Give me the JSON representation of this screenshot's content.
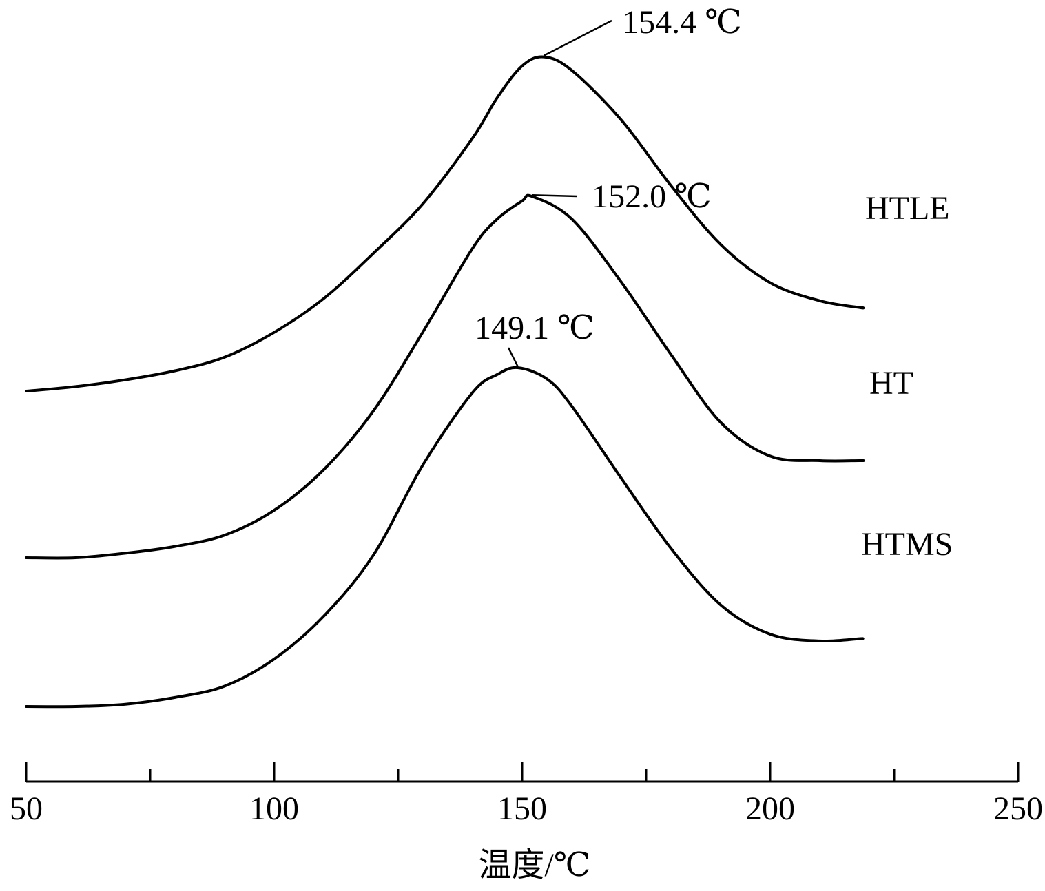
{
  "chart_data": {
    "type": "line",
    "title": "",
    "xlabel": "温度/℃",
    "ylabel": "",
    "xlim": [
      50,
      250
    ],
    "x_ticks": [
      "50",
      "100",
      "150",
      "200",
      "250"
    ],
    "x_minor_ticks": [
      75,
      125,
      175,
      225
    ],
    "grid": false,
    "legend": "none",
    "series": [
      {
        "name": "HTLE",
        "peak_label": "154.4 ℃",
        "peak_x": 154.4,
        "points": [
          [
            50,
            0.0
          ],
          [
            60,
            0.02
          ],
          [
            70,
            0.05
          ],
          [
            80,
            0.09
          ],
          [
            90,
            0.15
          ],
          [
            100,
            0.26
          ],
          [
            110,
            0.41
          ],
          [
            120,
            0.61
          ],
          [
            130,
            0.83
          ],
          [
            140,
            1.12
          ],
          [
            145,
            1.3
          ],
          [
            150,
            1.44
          ],
          [
            154.4,
            1.48
          ],
          [
            160,
            1.42
          ],
          [
            170,
            1.2
          ],
          [
            180,
            0.91
          ],
          [
            190,
            0.65
          ],
          [
            200,
            0.48
          ],
          [
            210,
            0.4
          ],
          [
            218,
            0.37
          ]
        ]
      },
      {
        "name": "HT",
        "peak_label": "152.0 ℃",
        "peak_x": 152.0,
        "points": [
          [
            50,
            0.0
          ],
          [
            60,
            0.0
          ],
          [
            70,
            0.02
          ],
          [
            80,
            0.05
          ],
          [
            90,
            0.1
          ],
          [
            100,
            0.21
          ],
          [
            110,
            0.39
          ],
          [
            120,
            0.65
          ],
          [
            130,
            1.0
          ],
          [
            140,
            1.37
          ],
          [
            145,
            1.5
          ],
          [
            150,
            1.58
          ],
          [
            152.0,
            1.6
          ],
          [
            160,
            1.5
          ],
          [
            170,
            1.22
          ],
          [
            180,
            0.9
          ],
          [
            190,
            0.6
          ],
          [
            200,
            0.45
          ],
          [
            210,
            0.43
          ],
          [
            218,
            0.43
          ]
        ]
      },
      {
        "name": "HTMS",
        "peak_label": "149.1 ℃",
        "peak_x": 149.1,
        "points": [
          [
            50,
            0.0
          ],
          [
            60,
            0.0
          ],
          [
            70,
            0.01
          ],
          [
            80,
            0.04
          ],
          [
            90,
            0.09
          ],
          [
            100,
            0.21
          ],
          [
            110,
            0.4
          ],
          [
            120,
            0.67
          ],
          [
            130,
            1.07
          ],
          [
            140,
            1.39
          ],
          [
            145,
            1.47
          ],
          [
            149.1,
            1.5
          ],
          [
            155,
            1.45
          ],
          [
            160,
            1.33
          ],
          [
            170,
            1.01
          ],
          [
            180,
            0.7
          ],
          [
            190,
            0.45
          ],
          [
            200,
            0.32
          ],
          [
            210,
            0.29
          ],
          [
            218,
            0.3
          ]
        ]
      }
    ]
  }
}
